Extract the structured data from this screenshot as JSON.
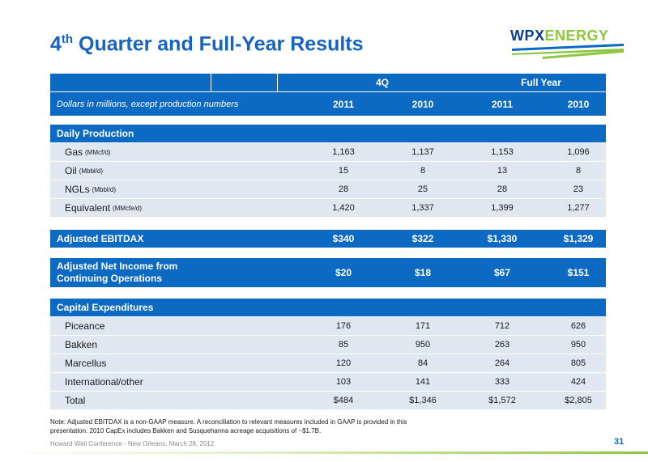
{
  "slide": {
    "title_main": "4",
    "title_sup": "th",
    "title_rest": " Quarter and Full-Year Results",
    "logo_a": "WPX",
    "logo_b": "ENERGY"
  },
  "header": {
    "group_4q": "4Q",
    "group_fy": "Full Year",
    "subtitle": "Dollars in millions, except production numbers",
    "cols": [
      "2011",
      "2010",
      "2011",
      "2010"
    ]
  },
  "production": {
    "title": "Daily Production",
    "rows": [
      {
        "label": "Gas",
        "unit": "(MMcf/d)",
        "values": [
          "1,163",
          "1,137",
          "1,153",
          "1,096"
        ]
      },
      {
        "label": "Oil",
        "unit": "(Mbbl/d)",
        "values": [
          "15",
          "8",
          "13",
          "8"
        ]
      },
      {
        "label": "NGLs",
        "unit": "(Mbbl/d)",
        "values": [
          "28",
          "25",
          "28",
          "23"
        ]
      },
      {
        "label": "Equivalent",
        "unit": "(MMcfe/d)",
        "values": [
          "1,420",
          "1,337",
          "1,399",
          "1,277"
        ]
      }
    ]
  },
  "ebitdax": {
    "label": "Adjusted EBITDAX",
    "values": [
      "$340",
      "$322",
      "$1,330",
      "$1,329"
    ]
  },
  "net_income": {
    "label_line1": "Adjusted Net Income from",
    "label_line2": "Continuing Operations",
    "values": [
      "$20",
      "$18",
      "$67",
      "$151"
    ]
  },
  "capex": {
    "title": "Capital Expenditures",
    "rows": [
      {
        "label": "Piceance",
        "values": [
          "176",
          "171",
          "712",
          "626"
        ]
      },
      {
        "label": "Bakken",
        "values": [
          "85",
          "950",
          "263",
          "950"
        ]
      },
      {
        "label": "Marcellus",
        "values": [
          "120",
          "84",
          "264",
          "805"
        ]
      },
      {
        "label": "International/other",
        "values": [
          "103",
          "141",
          "333",
          "424"
        ]
      },
      {
        "label": "Total",
        "values": [
          "$484",
          "$1,346",
          "$1,572",
          "$2,805"
        ]
      }
    ]
  },
  "note_line1": "Note:  Adjusted EBITDAX is a non-GAAP measure. A reconciliation to relevant measures included in GAAP is provided in this",
  "note_line2": "presentation. 2010 CapEx includes Bakken and Susquehanna acreage acquisitions of ~$1.7B.",
  "footer": "Howard Weil Conference - New Orleans, March 28, 2012",
  "page_number": "31",
  "colors": {
    "accent": "#0d6ac2",
    "row_bg": "#dfe7f1",
    "brand_green": "#8dc63f"
  }
}
